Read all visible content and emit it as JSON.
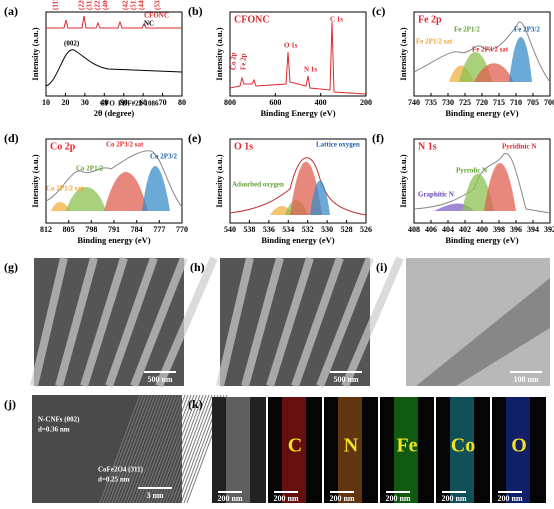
{
  "panels": [
    {
      "label": "(a)",
      "xlabel": "2θ (degree)",
      "ylabel": "Intensity (a.u.)",
      "xticks": [
        10,
        20,
        30,
        40,
        50,
        60,
        70,
        80
      ],
      "annotations": [
        "CFONC",
        "NC",
        "(002)",
        "CFO",
        "PDF#22-1086",
        "(111)",
        "(220)",
        "(311)",
        "(222)",
        "(400)",
        "(422)",
        "(511)",
        "(440)",
        "(533)"
      ]
    },
    {
      "label": "(b)",
      "title": "CFONC",
      "xlabel": "Binding Energy (eV)",
      "ylabel": "Intensity (a.u.)",
      "xticks": [
        800,
        600,
        400,
        200
      ],
      "annotations": [
        "Co 2p",
        "Fe 2p",
        "O 1s",
        "N 1s",
        "C 1s"
      ]
    },
    {
      "label": "(c)",
      "title": "Fe 2p",
      "xlabel": "Binding energy (eV)",
      "ylabel": "Intensity (a.u.)",
      "xticks": [
        740,
        735,
        730,
        725,
        720,
        715,
        710,
        705,
        700
      ],
      "annotations": [
        "Fe 2P1/2 sat",
        "Fe 2P1/2",
        "Fe 2P3/2 sat",
        "Fe 2P3/2"
      ]
    },
    {
      "label": "(d)",
      "title": "Co 2p",
      "xlabel": "Binding energy (eV)",
      "ylabel": "Intensity (a.u.)",
      "xticks": [
        812,
        805,
        798,
        791,
        784,
        777,
        770
      ],
      "annotations": [
        "Co 2P1/2 sat",
        "Co 2P1/2",
        "Co 2P3/2 sat",
        "Co 2P3/2"
      ]
    },
    {
      "label": "(e)",
      "title": "O 1s",
      "xlabel": "Binding energy (eV)",
      "ylabel": "Intensity (a.u.)",
      "xticks": [
        540,
        538,
        536,
        534,
        532,
        530,
        528,
        526
      ],
      "annotations": [
        "Lattice oxygen",
        "Adsorbed oxygen"
      ]
    },
    {
      "label": "(f)",
      "title": "N 1s",
      "xlabel": "Binding energy (eV)",
      "ylabel": "Intensity (a.u.)",
      "xticks": [
        408,
        406,
        404,
        402,
        400,
        398,
        396,
        394,
        392
      ],
      "annotations": [
        "Pyridinic N",
        "Pyrrolic N",
        "Graphitic N"
      ]
    }
  ],
  "images": [
    {
      "label": "(g)",
      "scale_bar": "500 nm"
    },
    {
      "label": "(h)",
      "scale_bar": "500 nm"
    },
    {
      "label": "(i)",
      "scale_bar": "100 nm"
    }
  ],
  "panel_j": {
    "label": "(j)",
    "annotations": [
      "N-CNFs (002)",
      "d=0.36 nm",
      "CoFe2O4 (311)",
      "d=0.25 nm"
    ],
    "scale_bar": "3 nm"
  },
  "panel_k": {
    "label": "(k)",
    "tiles": [
      {
        "scale_bar": "200 nm"
      },
      {
        "element": "C",
        "scale_bar": "200 nm"
      },
      {
        "element": "N",
        "scale_bar": "200 nm"
      },
      {
        "element": "Fe",
        "scale_bar": "200 nm"
      },
      {
        "element": "Co",
        "scale_bar": "200 nm"
      },
      {
        "element": "O",
        "scale_bar": "200 nm"
      }
    ]
  }
}
